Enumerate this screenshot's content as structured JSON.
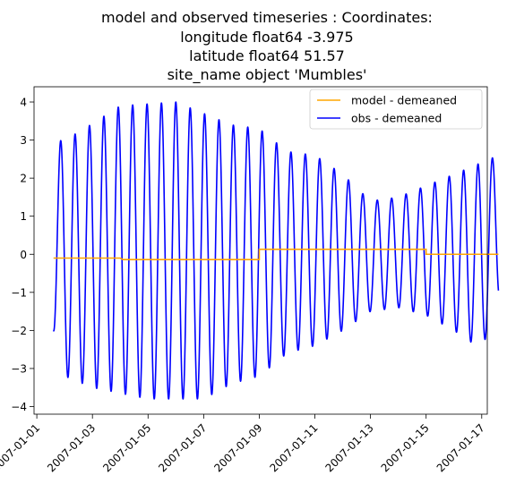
{
  "chart_data": {
    "type": "line",
    "title_lines": [
      "model and observed timeseries : Coordinates:",
      "longitude  float64 -3.975",
      "latitude   float64 51.57",
      "site_name  object 'Mumbles'"
    ],
    "xlabel": "",
    "ylabel": "",
    "xlim": [
      -0.1,
      16.2
    ],
    "ylim": [
      -4.2,
      4.4
    ],
    "x_ticks": [
      0,
      2,
      4,
      6,
      8,
      10,
      12,
      14,
      16
    ],
    "x_tick_labels": [
      "2007-01-01",
      "2007-01-03",
      "2007-01-05",
      "2007-01-07",
      "2007-01-09",
      "2007-01-11",
      "2007-01-13",
      "2007-01-15",
      "2007-01-17"
    ],
    "y_ticks": [
      -4,
      -3,
      -2,
      -1,
      0,
      1,
      2,
      3,
      4
    ],
    "y_tick_labels": [
      "−4",
      "−3",
      "−2",
      "−1",
      "0",
      "1",
      "2",
      "3",
      "4"
    ],
    "legend_position": "upper right",
    "grid": false,
    "series": [
      {
        "name": "model - demeaned",
        "color": "#ffa500",
        "x": [
          0.6,
          3.0,
          3.1,
          8.0,
          8.0,
          14.0,
          14.0,
          16.6
        ],
        "y": [
          -0.1,
          -0.1,
          -0.14,
          -0.14,
          0.13,
          0.13,
          0.0,
          0.0
        ]
      },
      {
        "name": "obs - demeaned",
        "color": "#0000ff",
        "x_start": 0.6,
        "x_end": 16.6,
        "period_days": 0.5175,
        "first_value": -2.0,
        "high_envelope": [
          [
            0.6,
            2.9
          ],
          [
            1.5,
            3.2
          ],
          [
            3.0,
            3.9
          ],
          [
            5.0,
            4.0
          ],
          [
            7.0,
            3.4
          ],
          [
            8.0,
            3.3
          ],
          [
            9.0,
            2.7
          ],
          [
            10.0,
            2.6
          ],
          [
            11.0,
            2.1
          ],
          [
            12.0,
            1.4
          ],
          [
            13.0,
            1.5
          ],
          [
            14.0,
            1.8
          ],
          [
            15.0,
            2.1
          ],
          [
            16.6,
            2.6
          ]
        ],
        "low_envelope": [
          [
            0.6,
            -2.0
          ],
          [
            1.0,
            -3.2
          ],
          [
            2.0,
            -3.5
          ],
          [
            4.0,
            -3.8
          ],
          [
            6.0,
            -3.8
          ],
          [
            7.0,
            -3.4
          ],
          [
            8.0,
            -3.2
          ],
          [
            9.0,
            -2.6
          ],
          [
            10.0,
            -2.4
          ],
          [
            11.0,
            -2.0
          ],
          [
            12.0,
            -1.5
          ],
          [
            13.0,
            -1.4
          ],
          [
            14.0,
            -1.6
          ],
          [
            15.0,
            -2.0
          ],
          [
            16.0,
            -2.5
          ],
          [
            16.6,
            -1.2
          ]
        ]
      }
    ]
  }
}
